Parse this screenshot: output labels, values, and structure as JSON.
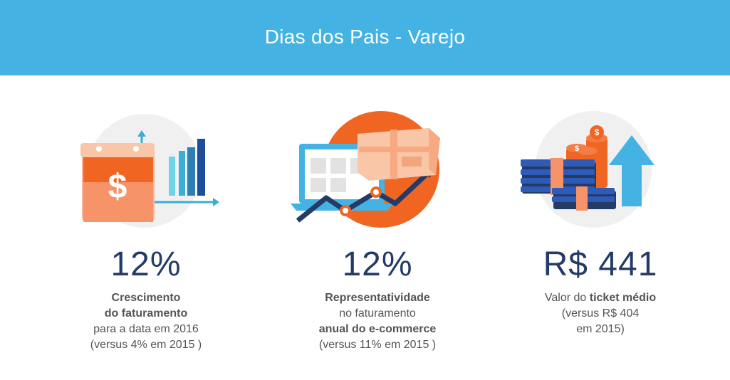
{
  "header": {
    "title": "Dias dos Pais - Varejo"
  },
  "stats": [
    {
      "value": "12%",
      "lines": [
        [
          {
            "t": "Crescimento",
            "b": true
          }
        ],
        [
          {
            "t": "do faturamento",
            "b": true
          }
        ],
        [
          {
            "t": "para a data em 2016",
            "b": false
          }
        ],
        [
          {
            "t": "(versus 4% em 2015 )",
            "b": false
          }
        ]
      ]
    },
    {
      "value": "12%",
      "lines": [
        [
          {
            "t": "Representatividade",
            "b": true
          }
        ],
        [
          {
            "t": "no faturamento",
            "b": false
          }
        ],
        [
          {
            "t": "anual do e-commerce",
            "b": true
          }
        ],
        [
          {
            "t": "(versus 11% em 2015 )",
            "b": false
          }
        ]
      ]
    },
    {
      "value": "R$ 441",
      "lines": [
        [
          {
            "t": "Valor do ",
            "b": false
          },
          {
            "t": "ticket médio",
            "b": true
          }
        ],
        [
          {
            "t": "(versus R$ 404",
            "b": false
          }
        ],
        [
          {
            "t": "em 2015)",
            "b": false
          }
        ]
      ]
    }
  ],
  "icons": [
    "calendar-dollar-icon",
    "laptop-box-growth-icon",
    "money-stack-arrow-icon"
  ],
  "colors": {
    "header": "#44b3e3",
    "accent_orange": "#f06522",
    "navy": "#233b66"
  }
}
